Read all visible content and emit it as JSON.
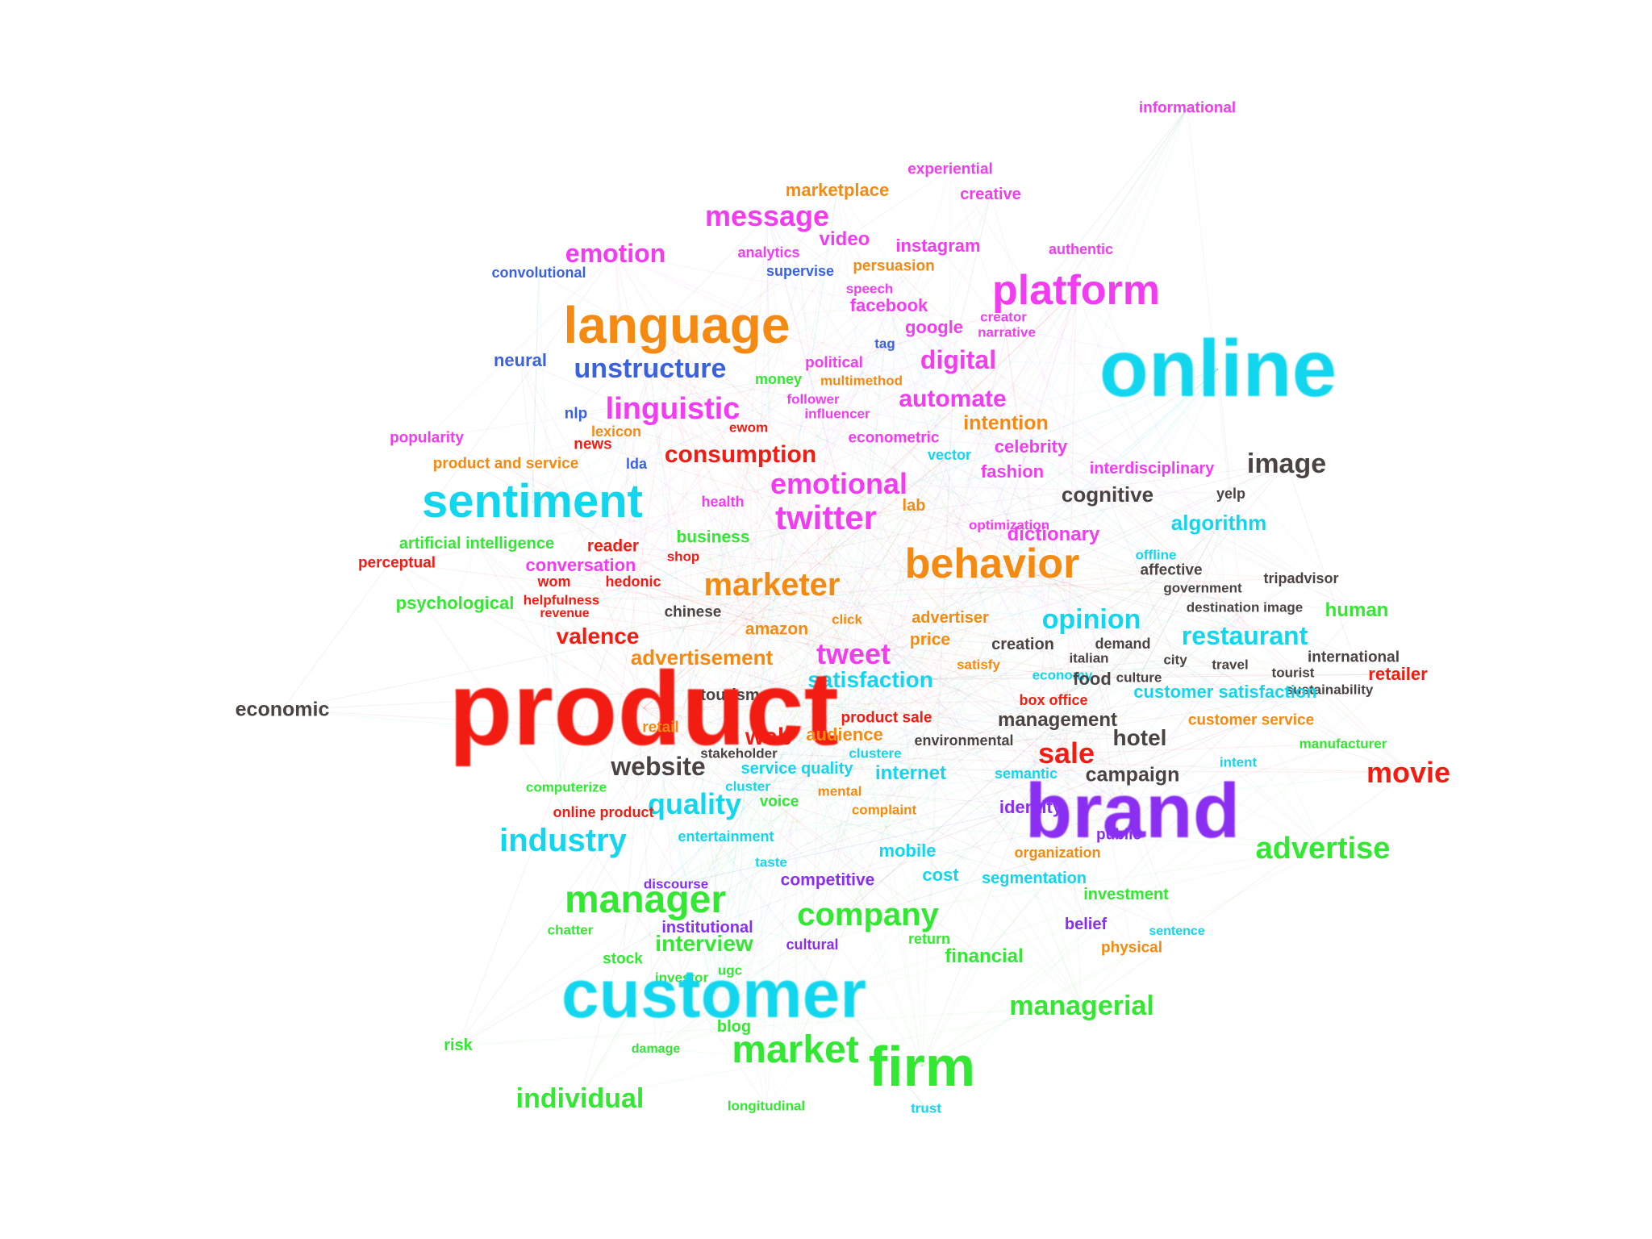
{
  "cluster_colors": {
    "magenta": "#f23cf2",
    "orange": "#f58a12",
    "blue": "#3a62e0",
    "cyan": "#12d6ee",
    "red": "#f21c12",
    "green": "#33e833",
    "dark": "#4a4342",
    "purple": "#8a2ef2"
  },
  "words": [
    {
      "text": "informational",
      "cluster": "magenta",
      "size": 19
    },
    {
      "text": "experiential",
      "cluster": "magenta",
      "size": 19
    },
    {
      "text": "creative",
      "cluster": "magenta",
      "size": 20
    },
    {
      "text": "marketplace",
      "cluster": "orange",
      "size": 22
    },
    {
      "text": "message",
      "cluster": "magenta",
      "size": 36
    },
    {
      "text": "video",
      "cluster": "magenta",
      "size": 24
    },
    {
      "text": "instagram",
      "cluster": "magenta",
      "size": 22
    },
    {
      "text": "authentic",
      "cluster": "magenta",
      "size": 18
    },
    {
      "text": "emotion",
      "cluster": "magenta",
      "size": 32
    },
    {
      "text": "analytics",
      "cluster": "magenta",
      "size": 18
    },
    {
      "text": "persuasion",
      "cluster": "orange",
      "size": 19
    },
    {
      "text": "convolutional",
      "cluster": "blue",
      "size": 18
    },
    {
      "text": "supervise",
      "cluster": "blue",
      "size": 18
    },
    {
      "text": "speech",
      "cluster": "magenta",
      "size": 17
    },
    {
      "text": "platform",
      "cluster": "magenta",
      "size": 52
    },
    {
      "text": "facebook",
      "cluster": "magenta",
      "size": 22
    },
    {
      "text": "creator",
      "cluster": "magenta",
      "size": 17
    },
    {
      "text": "language",
      "cluster": "orange",
      "size": 64
    },
    {
      "text": "google",
      "cluster": "magenta",
      "size": 22
    },
    {
      "text": "narrative",
      "cluster": "magenta",
      "size": 17
    },
    {
      "text": "online",
      "cluster": "cyan",
      "size": 100
    },
    {
      "text": "tag",
      "cluster": "blue",
      "size": 17
    },
    {
      "text": "digital",
      "cluster": "magenta",
      "size": 32
    },
    {
      "text": "neural",
      "cluster": "blue",
      "size": 22
    },
    {
      "text": "unstructure",
      "cluster": "blue",
      "size": 34
    },
    {
      "text": "political",
      "cluster": "magenta",
      "size": 19
    },
    {
      "text": "money",
      "cluster": "green",
      "size": 18
    },
    {
      "text": "multimethod",
      "cluster": "orange",
      "size": 17
    },
    {
      "text": "follower",
      "cluster": "magenta",
      "size": 17
    },
    {
      "text": "automate",
      "cluster": "magenta",
      "size": 30
    },
    {
      "text": "nlp",
      "cluster": "blue",
      "size": 19
    },
    {
      "text": "linguistic",
      "cluster": "magenta",
      "size": 38
    },
    {
      "text": "influencer",
      "cluster": "magenta",
      "size": 17
    },
    {
      "text": "intention",
      "cluster": "orange",
      "size": 25
    },
    {
      "text": "lexicon",
      "cluster": "orange",
      "size": 18
    },
    {
      "text": "ewom",
      "cluster": "red",
      "size": 17
    },
    {
      "text": "popularity",
      "cluster": "magenta",
      "size": 19
    },
    {
      "text": "news",
      "cluster": "red",
      "size": 19
    },
    {
      "text": "econometric",
      "cluster": "magenta",
      "size": 19
    },
    {
      "text": "celebrity",
      "cluster": "magenta",
      "size": 22
    },
    {
      "text": "consumption",
      "cluster": "red",
      "size": 30
    },
    {
      "text": "vector",
      "cluster": "cyan",
      "size": 18
    },
    {
      "text": "product and service",
      "cluster": "orange",
      "size": 19
    },
    {
      "text": "lda",
      "cluster": "blue",
      "size": 18
    },
    {
      "text": "fashion",
      "cluster": "magenta",
      "size": 22
    },
    {
      "text": "interdisciplinary",
      "cluster": "magenta",
      "size": 20
    },
    {
      "text": "image",
      "cluster": "dark",
      "size": 34
    },
    {
      "text": "sentiment",
      "cluster": "cyan",
      "size": 58
    },
    {
      "text": "emotional",
      "cluster": "magenta",
      "size": 36
    },
    {
      "text": "health",
      "cluster": "magenta",
      "size": 18
    },
    {
      "text": "cognitive",
      "cluster": "dark",
      "size": 26
    },
    {
      "text": "yelp",
      "cluster": "dark",
      "size": 18
    },
    {
      "text": "twitter",
      "cluster": "magenta",
      "size": 42
    },
    {
      "text": "lab",
      "cluster": "orange",
      "size": 20
    },
    {
      "text": "optimization",
      "cluster": "magenta",
      "size": 17
    },
    {
      "text": "dictionary",
      "cluster": "magenta",
      "size": 24
    },
    {
      "text": "algorithm",
      "cluster": "cyan",
      "size": 26
    },
    {
      "text": "business",
      "cluster": "green",
      "size": 21
    },
    {
      "text": "artificial intelligence",
      "cluster": "green",
      "size": 20
    },
    {
      "text": "behavior",
      "cluster": "orange",
      "size": 52
    },
    {
      "text": "reader",
      "cluster": "red",
      "size": 21
    },
    {
      "text": "offline",
      "cluster": "cyan",
      "size": 17
    },
    {
      "text": "shop",
      "cluster": "red",
      "size": 17
    },
    {
      "text": "perceptual",
      "cluster": "red",
      "size": 19
    },
    {
      "text": "conversation",
      "cluster": "magenta",
      "size": 22
    },
    {
      "text": "affective",
      "cluster": "dark",
      "size": 19
    },
    {
      "text": "tripadvisor",
      "cluster": "dark",
      "size": 18
    },
    {
      "text": "wom",
      "cluster": "red",
      "size": 18
    },
    {
      "text": "hedonic",
      "cluster": "red",
      "size": 18
    },
    {
      "text": "marketer",
      "cluster": "orange",
      "size": 40
    },
    {
      "text": "government",
      "cluster": "dark",
      "size": 17
    },
    {
      "text": "helpfulness",
      "cluster": "red",
      "size": 17
    },
    {
      "text": "destination image",
      "cluster": "dark",
      "size": 17
    },
    {
      "text": "psychological",
      "cluster": "green",
      "size": 22
    },
    {
      "text": "revenue",
      "cluster": "red",
      "size": 16
    },
    {
      "text": "human",
      "cluster": "green",
      "size": 24
    },
    {
      "text": "chinese",
      "cluster": "dark",
      "size": 19
    },
    {
      "text": "opinion",
      "cluster": "cyan",
      "size": 34
    },
    {
      "text": "click",
      "cluster": "orange",
      "size": 17
    },
    {
      "text": "advertiser",
      "cluster": "orange",
      "size": 20
    },
    {
      "text": "amazon",
      "cluster": "orange",
      "size": 21
    },
    {
      "text": "valence",
      "cluster": "red",
      "size": 28
    },
    {
      "text": "restaurant",
      "cluster": "cyan",
      "size": 32
    },
    {
      "text": "price",
      "cluster": "orange",
      "size": 21
    },
    {
      "text": "creation",
      "cluster": "dark",
      "size": 20
    },
    {
      "text": "demand",
      "cluster": "dark",
      "size": 18
    },
    {
      "text": "tweet",
      "cluster": "magenta",
      "size": 36
    },
    {
      "text": "advertisement",
      "cluster": "orange",
      "size": 26
    },
    {
      "text": "italian",
      "cluster": "dark",
      "size": 17
    },
    {
      "text": "city",
      "cluster": "dark",
      "size": 17
    },
    {
      "text": "international",
      "cluster": "dark",
      "size": 19
    },
    {
      "text": "satisfy",
      "cluster": "orange",
      "size": 17
    },
    {
      "text": "travel",
      "cluster": "dark",
      "size": 17
    },
    {
      "text": "tourist",
      "cluster": "dark",
      "size": 17
    },
    {
      "text": "satisfaction",
      "cluster": "cyan",
      "size": 28
    },
    {
      "text": "economy",
      "cluster": "cyan",
      "size": 17
    },
    {
      "text": "food",
      "cluster": "dark",
      "size": 22
    },
    {
      "text": "culture",
      "cluster": "dark",
      "size": 17
    },
    {
      "text": "retailer",
      "cluster": "red",
      "size": 22
    },
    {
      "text": "tourism",
      "cluster": "dark",
      "size": 20
    },
    {
      "text": "sustainability",
      "cluster": "dark",
      "size": 17
    },
    {
      "text": "customer satisfaction",
      "cluster": "cyan",
      "size": 22
    },
    {
      "text": "box office",
      "cluster": "red",
      "size": 18
    },
    {
      "text": "product",
      "cluster": "red",
      "size": 130
    },
    {
      "text": "economic",
      "cluster": "dark",
      "size": 25
    },
    {
      "text": "management",
      "cluster": "dark",
      "size": 24
    },
    {
      "text": "customer service",
      "cluster": "orange",
      "size": 19
    },
    {
      "text": "product sale",
      "cluster": "red",
      "size": 19
    },
    {
      "text": "retail",
      "cluster": "orange",
      "size": 19
    },
    {
      "text": "audience",
      "cluster": "orange",
      "size": 22
    },
    {
      "text": "web",
      "cluster": "red",
      "size": 30
    },
    {
      "text": "environmental",
      "cluster": "dark",
      "size": 18
    },
    {
      "text": "hotel",
      "cluster": "dark",
      "size": 28
    },
    {
      "text": "manufacturer",
      "cluster": "green",
      "size": 17
    },
    {
      "text": "clustere",
      "cluster": "cyan",
      "size": 17
    },
    {
      "text": "stakeholder",
      "cluster": "dark",
      "size": 17
    },
    {
      "text": "sale",
      "cluster": "red",
      "size": 36
    },
    {
      "text": "website",
      "cluster": "dark",
      "size": 32
    },
    {
      "text": "intent",
      "cluster": "cyan",
      "size": 17
    },
    {
      "text": "service quality",
      "cluster": "cyan",
      "size": 20
    },
    {
      "text": "internet",
      "cluster": "cyan",
      "size": 24
    },
    {
      "text": "semantic",
      "cluster": "cyan",
      "size": 18
    },
    {
      "text": "campaign",
      "cluster": "dark",
      "size": 25
    },
    {
      "text": "movie",
      "cluster": "red",
      "size": 36
    },
    {
      "text": "computerize",
      "cluster": "green",
      "size": 17
    },
    {
      "text": "cluster",
      "cluster": "cyan",
      "size": 17
    },
    {
      "text": "mental",
      "cluster": "orange",
      "size": 17
    },
    {
      "text": "voice",
      "cluster": "green",
      "size": 19
    },
    {
      "text": "quality",
      "cluster": "cyan",
      "size": 36
    },
    {
      "text": "identity",
      "cluster": "purple",
      "size": 22
    },
    {
      "text": "complaint",
      "cluster": "orange",
      "size": 17
    },
    {
      "text": "online product",
      "cluster": "red",
      "size": 18
    },
    {
      "text": "brand",
      "cluster": "purple",
      "size": 96
    },
    {
      "text": "public",
      "cluster": "purple",
      "size": 19
    },
    {
      "text": "advertise",
      "cluster": "green",
      "size": 38
    },
    {
      "text": "entertainment",
      "cluster": "cyan",
      "size": 18
    },
    {
      "text": "industry",
      "cluster": "cyan",
      "size": 40
    },
    {
      "text": "mobile",
      "cluster": "cyan",
      "size": 22
    },
    {
      "text": "organization",
      "cluster": "orange",
      "size": 18
    },
    {
      "text": "taste",
      "cluster": "cyan",
      "size": 17
    },
    {
      "text": "cost",
      "cluster": "cyan",
      "size": 22
    },
    {
      "text": "competitive",
      "cluster": "purple",
      "size": 21
    },
    {
      "text": "segmentation",
      "cluster": "cyan",
      "size": 20
    },
    {
      "text": "discourse",
      "cluster": "purple",
      "size": 17
    },
    {
      "text": "investment",
      "cluster": "green",
      "size": 20
    },
    {
      "text": "manager",
      "cluster": "green",
      "size": 48
    },
    {
      "text": "company",
      "cluster": "green",
      "size": 40
    },
    {
      "text": "chatter",
      "cluster": "green",
      "size": 17
    },
    {
      "text": "institutional",
      "cluster": "purple",
      "size": 20
    },
    {
      "text": "belief",
      "cluster": "purple",
      "size": 20
    },
    {
      "text": "sentence",
      "cluster": "cyan",
      "size": 16
    },
    {
      "text": "return",
      "cluster": "green",
      "size": 18
    },
    {
      "text": "interview",
      "cluster": "green",
      "size": 28
    },
    {
      "text": "cultural",
      "cluster": "purple",
      "size": 18
    },
    {
      "text": "physical",
      "cluster": "orange",
      "size": 19
    },
    {
      "text": "financial",
      "cluster": "green",
      "size": 24
    },
    {
      "text": "stock",
      "cluster": "green",
      "size": 19
    },
    {
      "text": "ugc",
      "cluster": "green",
      "size": 17
    },
    {
      "text": "investor",
      "cluster": "green",
      "size": 17
    },
    {
      "text": "customer",
      "cluster": "cyan",
      "size": 84
    },
    {
      "text": "managerial",
      "cluster": "green",
      "size": 34
    },
    {
      "text": "blog",
      "cluster": "green",
      "size": 20
    },
    {
      "text": "risk",
      "cluster": "green",
      "size": 20
    },
    {
      "text": "damage",
      "cluster": "green",
      "size": 16
    },
    {
      "text": "market",
      "cluster": "green",
      "size": 48
    },
    {
      "text": "firm",
      "cluster": "green",
      "size": 70
    },
    {
      "text": "individual",
      "cluster": "green",
      "size": 34
    },
    {
      "text": "longitudinal",
      "cluster": "green",
      "size": 17
    },
    {
      "text": "trust",
      "cluster": "cyan",
      "size": 17
    }
  ]
}
